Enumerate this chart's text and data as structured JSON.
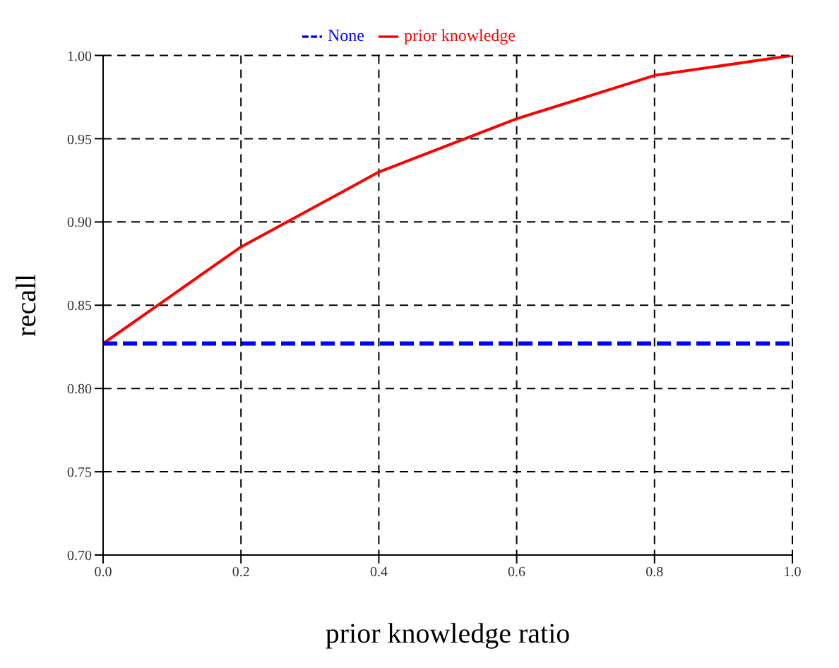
{
  "chart_data": {
    "type": "line",
    "xlabel": "prior knowledge ratio",
    "ylabel": "recall",
    "x": [
      0.0,
      0.2,
      0.4,
      0.6,
      0.8,
      1.0
    ],
    "series": [
      {
        "name": "prior knowledge",
        "color": "#ff0000",
        "values": [
          0.827,
          0.885,
          0.93,
          0.962,
          0.988,
          1.0
        ],
        "line_style": "solid"
      },
      {
        "name": "None",
        "color": "#0000ff",
        "values": [
          0.827,
          0.827,
          0.827,
          0.827,
          0.827,
          0.827
        ],
        "line_style": "dashed"
      }
    ],
    "xlim": [
      0,
      1
    ],
    "xticks": [
      {
        "value": 0,
        "label": "0.0"
      },
      0.2,
      0.4,
      0.6,
      0.8,
      {
        "value": 1,
        "label": "1.0"
      }
    ],
    "ylim": [
      0.7,
      1.0
    ],
    "yticks": [
      {
        "value": 0.7,
        "label": "0.70"
      },
      0.75,
      {
        "value": 0.8,
        "label": "0.80"
      },
      0.85,
      {
        "value": 0.9,
        "label": "0.90"
      },
      0.95,
      {
        "value": 1.0,
        "label": "1.00"
      }
    ],
    "grid": true,
    "legend": "top",
    "marker": "none"
  }
}
